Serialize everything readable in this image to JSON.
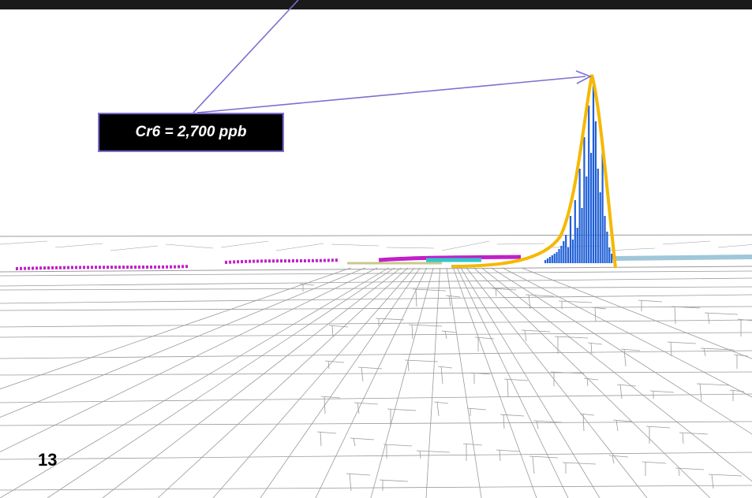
{
  "callout": {
    "label": "Cr6 = 2,700 ppb"
  },
  "slide": {
    "number": "13"
  },
  "colors": {
    "callout_background": "#000000",
    "callout_border": "#7b6fd0",
    "leader_line": "#7b6fd0",
    "plume_bars": "#1f5fd6",
    "plume_outline": "#f5b800",
    "plume_zone": "#c020c8",
    "secondary_zone": "#30c8c8",
    "parcel_lines": "#9a9a9a"
  }
}
